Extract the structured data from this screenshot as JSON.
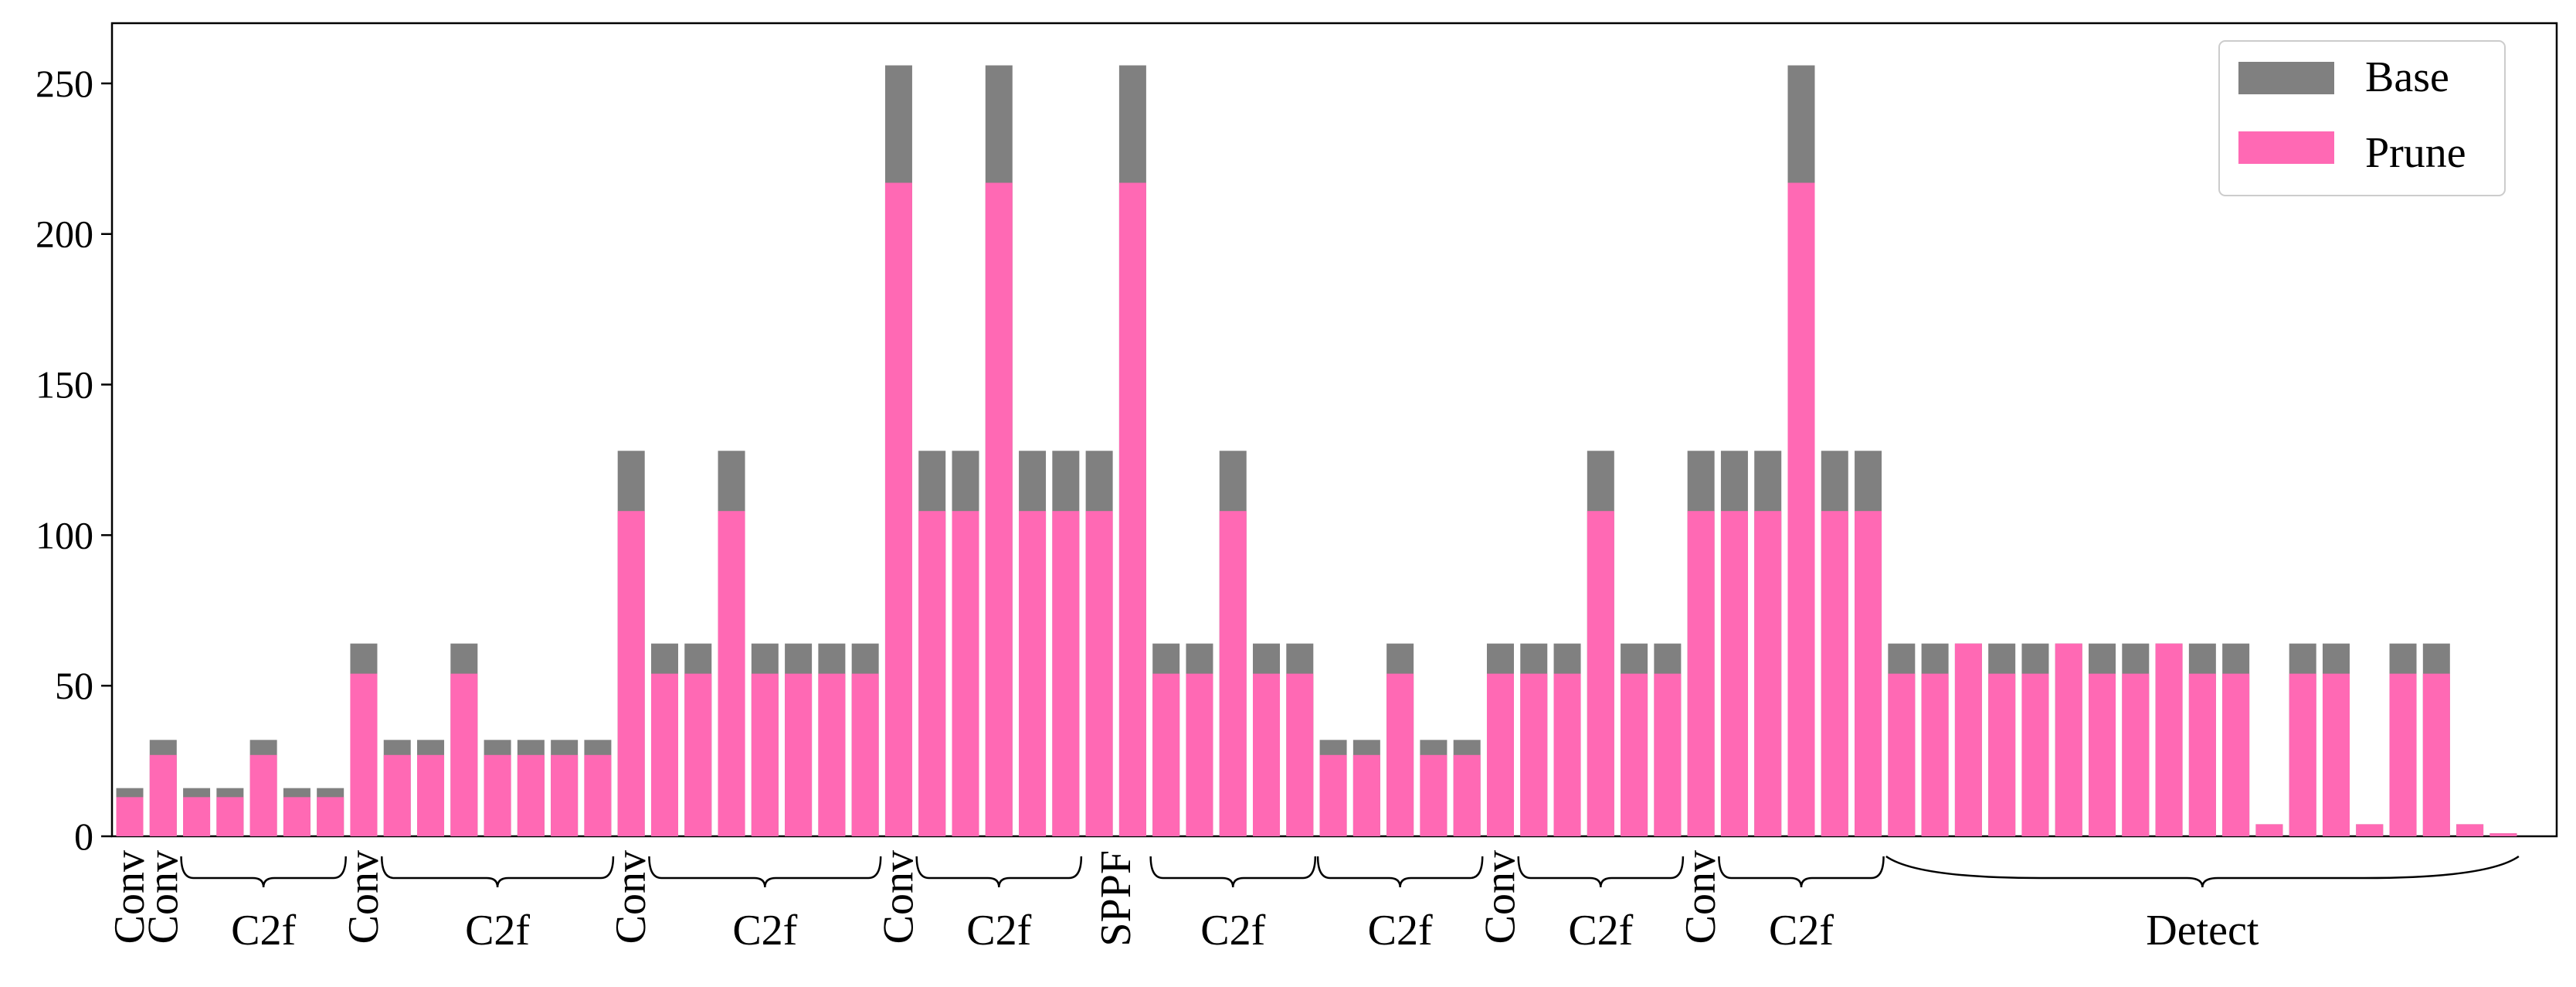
{
  "chart_data": {
    "type": "bar",
    "title": "",
    "xlabel": "",
    "ylabel": "",
    "ylim": [
      0,
      270
    ],
    "yticks": [
      0,
      50,
      100,
      150,
      200,
      250
    ],
    "legend": {
      "placement": "top-right",
      "entries": [
        {
          "name": "Base",
          "color": "#808080"
        },
        {
          "name": "Prune",
          "color": "#ff69b4"
        }
      ]
    },
    "grid": false,
    "series": [
      {
        "name": "Base",
        "color": "#808080",
        "values": [
          16,
          32,
          16,
          16,
          32,
          16,
          16,
          64,
          32,
          32,
          64,
          32,
          32,
          32,
          32,
          128,
          64,
          64,
          128,
          64,
          64,
          64,
          64,
          256,
          128,
          128,
          256,
          128,
          128,
          128,
          256,
          64,
          64,
          128,
          64,
          64,
          32,
          32,
          64,
          32,
          32,
          64,
          64,
          64,
          128,
          64,
          64,
          128,
          128,
          128,
          256,
          128,
          128,
          64,
          64,
          64,
          64,
          64,
          64,
          64,
          64,
          64,
          64,
          64,
          4,
          64,
          64,
          4,
          64,
          64,
          4,
          1
        ]
      },
      {
        "name": "Prune",
        "color": "#ff69b4",
        "values": [
          13,
          27,
          13,
          13,
          27,
          13,
          13,
          54,
          27,
          27,
          54,
          27,
          27,
          27,
          27,
          108,
          54,
          54,
          108,
          54,
          54,
          54,
          54,
          217,
          108,
          108,
          217,
          108,
          108,
          108,
          217,
          54,
          54,
          108,
          54,
          54,
          27,
          27,
          54,
          27,
          27,
          54,
          54,
          54,
          108,
          54,
          54,
          108,
          108,
          108,
          217,
          108,
          108,
          54,
          54,
          64,
          54,
          54,
          64,
          54,
          54,
          64,
          54,
          54,
          4,
          54,
          54,
          4,
          54,
          54,
          4,
          1
        ]
      }
    ],
    "groups": [
      {
        "label": "Conv",
        "start": 0,
        "end": 0,
        "rotated": true
      },
      {
        "label": "Conv",
        "start": 1,
        "end": 1,
        "rotated": true
      },
      {
        "label": "C2f",
        "start": 2,
        "end": 6,
        "rotated": false
      },
      {
        "label": "Conv",
        "start": 7,
        "end": 7,
        "rotated": true
      },
      {
        "label": "C2f",
        "start": 8,
        "end": 14,
        "rotated": false
      },
      {
        "label": "Conv",
        "start": 15,
        "end": 15,
        "rotated": true
      },
      {
        "label": "C2f",
        "start": 16,
        "end": 22,
        "rotated": false
      },
      {
        "label": "Conv",
        "start": 23,
        "end": 23,
        "rotated": true
      },
      {
        "label": "C2f",
        "start": 24,
        "end": 28,
        "rotated": false
      },
      {
        "label": "SPPF",
        "start": 29,
        "end": 30,
        "rotated": true
      },
      {
        "label": "C2f",
        "start": 31,
        "end": 35,
        "rotated": false
      },
      {
        "label": "C2f",
        "start": 36,
        "end": 40,
        "rotated": false
      },
      {
        "label": "Conv",
        "start": 41,
        "end": 41,
        "rotated": true
      },
      {
        "label": "C2f",
        "start": 42,
        "end": 46,
        "rotated": false
      },
      {
        "label": "Conv",
        "start": 47,
        "end": 47,
        "rotated": true
      },
      {
        "label": "C2f",
        "start": 48,
        "end": 52,
        "rotated": false
      },
      {
        "label": "Detect",
        "start": 53,
        "end": 71,
        "rotated": false
      }
    ]
  }
}
